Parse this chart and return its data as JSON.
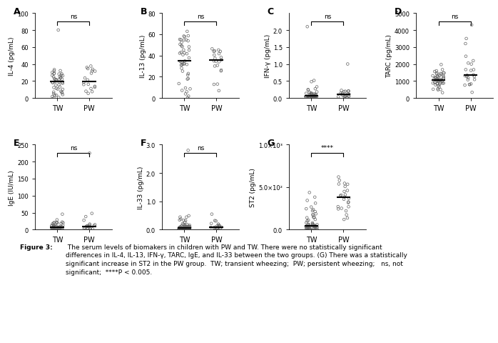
{
  "panels": [
    "A",
    "B",
    "C",
    "D",
    "E",
    "F",
    "G"
  ],
  "xlabels": [
    "TW",
    "PW"
  ],
  "ylabels": {
    "A": "IL-4 (pg/mL)",
    "B": "IL-13 (pg/mL)",
    "C": "IFN-γ (pg/mL)",
    "D": "TARC (pg/mL)",
    "E": "IgE (IU/mL)",
    "F": "IL-33 (pg/mL)",
    "G": "ST2 (pg/mL)"
  },
  "ylims": {
    "A": [
      0,
      100
    ],
    "B": [
      0,
      80
    ],
    "C": [
      0,
      2.5
    ],
    "D": [
      0,
      5000
    ],
    "E": [
      0,
      250
    ],
    "F": [
      0,
      3.0
    ],
    "G": [
      0,
      1000
    ]
  },
  "yticks": {
    "A": [
      0,
      20,
      40,
      60,
      80,
      100
    ],
    "B": [
      0,
      20,
      40,
      60,
      80
    ],
    "C": [
      0.0,
      0.5,
      1.0,
      1.5,
      2.0
    ],
    "D": [
      0,
      1000,
      2000,
      3000,
      4000,
      5000
    ],
    "E": [
      0,
      50,
      100,
      150,
      200,
      250
    ],
    "F": [
      0.0,
      1.0,
      2.0,
      3.0
    ],
    "G": [
      0,
      500,
      1000
    ]
  },
  "yticklabels": {
    "A": [
      "0",
      "20",
      "40",
      "60",
      "80",
      "100"
    ],
    "B": [
      "0",
      "20",
      "40",
      "60",
      "80"
    ],
    "C": [
      "0.0",
      "0.5",
      "1.0",
      "1.5",
      "2.0"
    ],
    "D": [
      "0",
      "1000",
      "2000",
      "3000",
      "4000",
      "5000"
    ],
    "E": [
      "0",
      "50",
      "100",
      "150",
      "200",
      "250"
    ],
    "F": [
      "0.0",
      "1.0",
      "2.0",
      "3.0"
    ],
    "G": [
      "0.0",
      "5.0×10²",
      "1.0×10³"
    ]
  },
  "significance": {
    "A": "ns",
    "B": "ns",
    "C": "ns",
    "D": "ns",
    "E": "ns",
    "F": "ns",
    "G": "****"
  },
  "background_color": "#ffffff",
  "dot_color": "#666666",
  "median_color": "#000000",
  "font_color": "#000000",
  "caption_bold": "Figure 3:",
  "caption_rest": " The serum levels of biomakers in children with PW and TW. There were no statistically significant\ndifferences in IL-4, IL-13, IFN-γ, TARC, IgE, and IL-33 between the two groups. (G) There was a statistically\nsignificant increase in ST2 in the PW group.  TW; transient wheezing;  PW; persistent wheezing;   ns, not\nsignificant;  ****P < 0.005."
}
